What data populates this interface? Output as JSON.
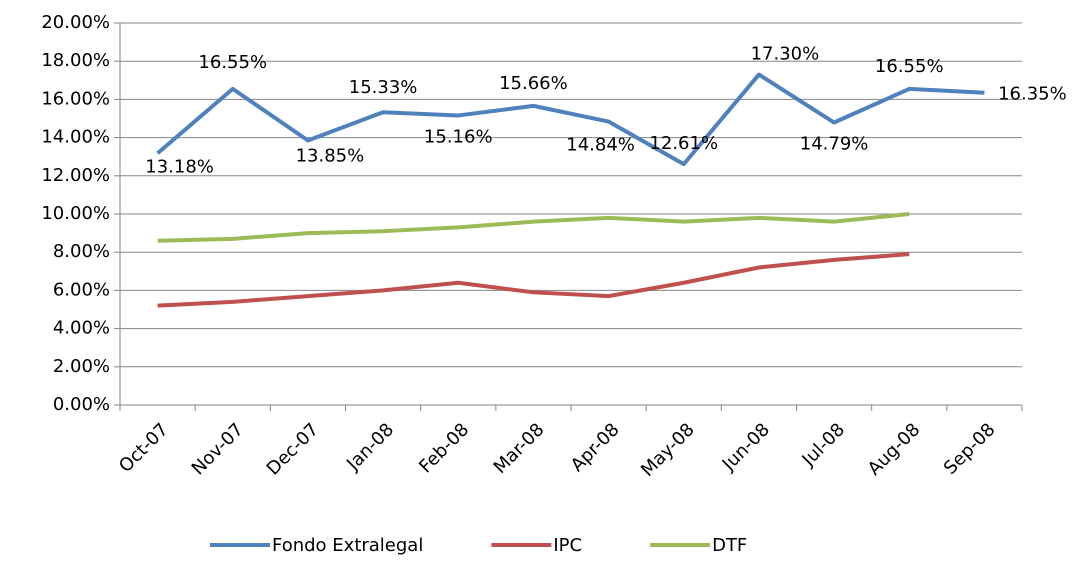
{
  "chart_data": {
    "type": "line",
    "categories": [
      "Oct-07",
      "Nov-07",
      "Dec-07",
      "Jan-08",
      "Feb-08",
      "Mar-08",
      "Apr-08",
      "May-08",
      "Jun-08",
      "Jul-08",
      "Aug-08",
      "Sep-08"
    ],
    "series": [
      {
        "name": "Fondo Extralegal",
        "color": "#4f81bd",
        "values": [
          13.18,
          16.55,
          13.85,
          15.33,
          15.16,
          15.66,
          14.84,
          12.61,
          17.3,
          14.79,
          16.55,
          16.35
        ],
        "value_labels": [
          "13.18%",
          "16.55%",
          "13.85%",
          "15.33%",
          "15.16%",
          "15.66%",
          "14.84%",
          "12.61%",
          "17.30%",
          "14.79%",
          "16.55%",
          "16.35%"
        ]
      },
      {
        "name": "IPC",
        "color": "#c0504d",
        "values": [
          5.2,
          5.4,
          5.7,
          6.0,
          6.4,
          5.9,
          5.7,
          6.4,
          7.2,
          7.6,
          7.9,
          null
        ]
      },
      {
        "name": "DTF",
        "color": "#9bbb59",
        "values": [
          8.6,
          8.7,
          9.0,
          9.1,
          9.3,
          9.6,
          9.8,
          9.6,
          9.8,
          9.6,
          10.0,
          null
        ]
      }
    ],
    "ylim": [
      0,
      20
    ],
    "yticks": [
      {
        "value": 0,
        "label": "0.00%"
      },
      {
        "value": 2,
        "label": "2.00%"
      },
      {
        "value": 4,
        "label": "4.00%"
      },
      {
        "value": 6,
        "label": "6.00%"
      },
      {
        "value": 8,
        "label": "8.00%"
      },
      {
        "value": 10,
        "label": "10.00%"
      },
      {
        "value": 12,
        "label": "12.00%"
      },
      {
        "value": 14,
        "label": "14.00%"
      },
      {
        "value": 16,
        "label": "16.00%"
      },
      {
        "value": 18,
        "label": "18.00%"
      },
      {
        "value": 20,
        "label": "20.00%"
      }
    ],
    "grid": true,
    "legend": "bottom"
  }
}
